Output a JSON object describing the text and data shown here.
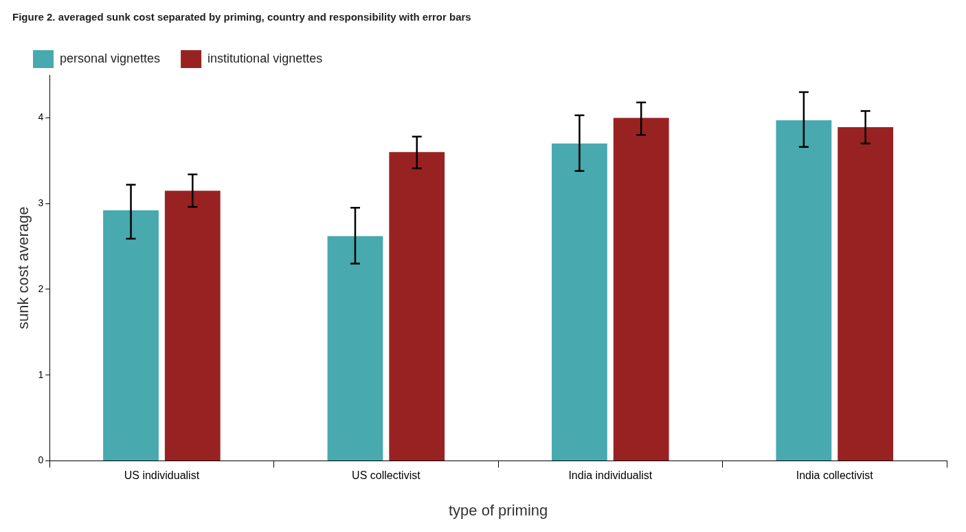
{
  "chart_data": {
    "type": "bar",
    "title": "Figure 2. averaged sunk cost separated by priming, country and responsibility with error bars",
    "xlabel": "type of priming",
    "ylabel": "sunk cost average",
    "categories": [
      "US individualist",
      "US collectivist",
      "India individualist",
      "India collectivist"
    ],
    "series": [
      {
        "name": "personal vignettes",
        "color": "#48a9ae",
        "values": [
          2.92,
          2.62,
          3.7,
          3.97
        ],
        "errors": [
          [
            2.59,
            3.22
          ],
          [
            2.3,
            2.95
          ],
          [
            3.38,
            4.03
          ],
          [
            3.66,
            4.3
          ]
        ]
      },
      {
        "name": "institutional vignettes",
        "color": "#982222",
        "values": [
          3.15,
          3.6,
          4.0,
          3.89
        ],
        "errors": [
          [
            2.96,
            3.34
          ],
          [
            3.41,
            3.78
          ],
          [
            3.8,
            4.18
          ],
          [
            3.7,
            4.08
          ]
        ]
      }
    ],
    "ylim": [
      0,
      4.5
    ],
    "yticks": [
      0,
      1,
      2,
      3,
      4
    ],
    "grid": false,
    "legend": "top left"
  }
}
